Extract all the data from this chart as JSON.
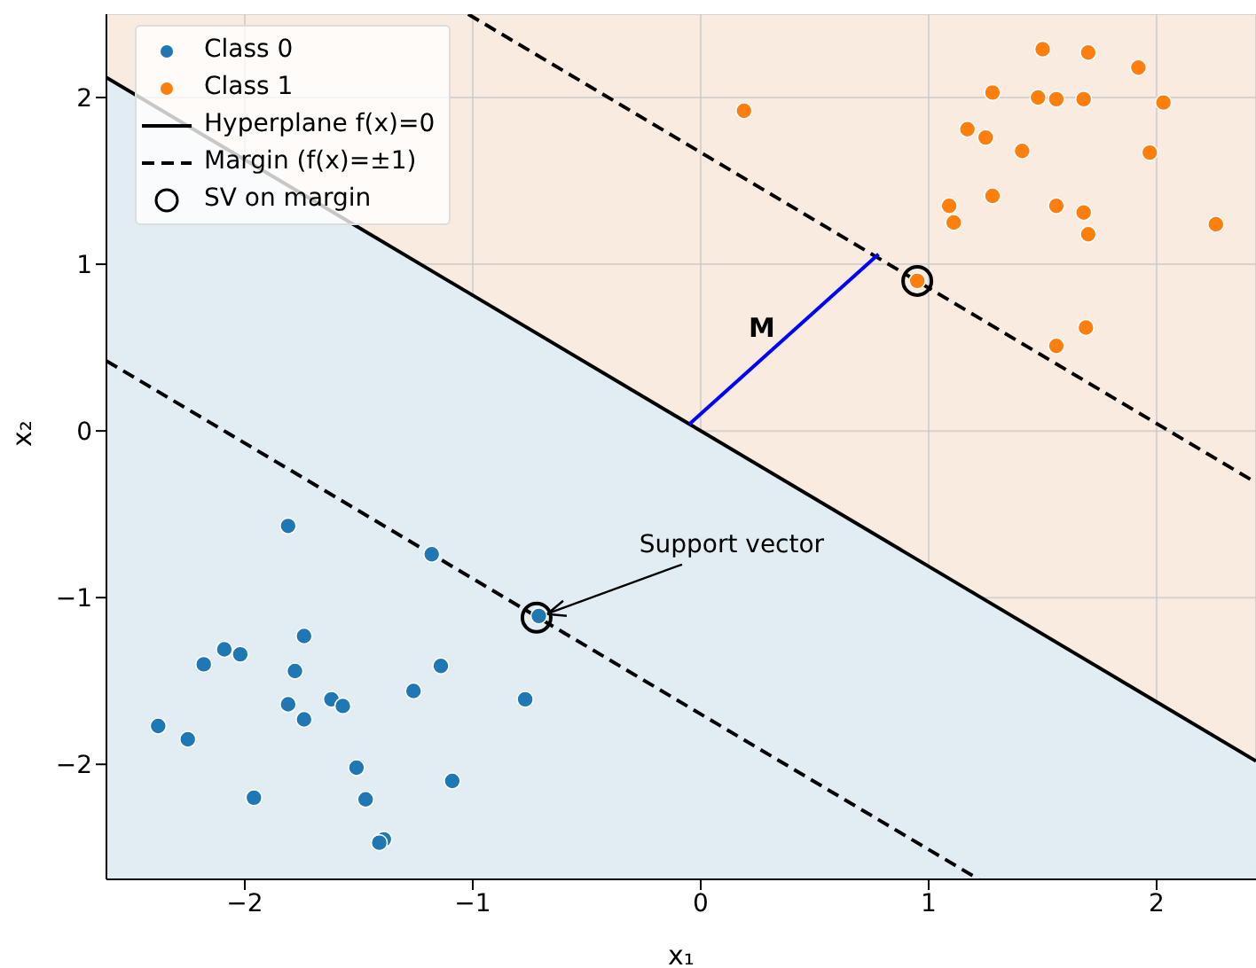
{
  "chart_data": {
    "type": "scatter",
    "xlabel": "x₁",
    "ylabel": "x₂",
    "xlim": [
      -2.607,
      2.436
    ],
    "ylim": [
      -2.69,
      2.5
    ],
    "xticks": [
      -2,
      -1,
      0,
      1,
      2
    ],
    "yticks": [
      -2,
      -1,
      0,
      1,
      2
    ],
    "grid": true,
    "legend": "top left",
    "annotations": [
      "M",
      {
        "text": "Support vector",
        "x": -0.72,
        "y": -1.12
      }
    ],
    "series": [
      {
        "name": "Class 0",
        "color": "#1f77b4",
        "marker": "circle",
        "x": [
          -1.81,
          -1.18,
          -0.71,
          -1.74,
          -2.09,
          -2.02,
          -2.18,
          -1.78,
          -1.14,
          -1.26,
          -0.77,
          -1.62,
          -1.57,
          -1.81,
          -1.74,
          -2.38,
          -2.25,
          -1.51,
          -1.09,
          -1.96,
          -1.47,
          -1.39,
          -1.41
        ],
        "values": [
          -0.57,
          -0.74,
          -1.11,
          -1.23,
          -1.31,
          -1.34,
          -1.4,
          -1.44,
          -1.41,
          -1.56,
          -1.61,
          -1.61,
          -1.65,
          -1.64,
          -1.73,
          -1.77,
          -1.85,
          -2.02,
          -2.1,
          -2.2,
          -2.21,
          -2.45,
          -2.47
        ]
      },
      {
        "name": "Class 1",
        "color": "#ff7f0e",
        "marker": "circle",
        "x": [
          1.5,
          1.7,
          1.92,
          1.28,
          1.48,
          1.56,
          1.68,
          2.03,
          0.19,
          1.17,
          1.25,
          1.41,
          1.97,
          1.09,
          1.28,
          1.56,
          1.68,
          1.11,
          1.7,
          2.26,
          0.95,
          1.69,
          1.56
        ],
        "values": [
          2.29,
          2.27,
          2.18,
          2.03,
          2.0,
          1.99,
          1.99,
          1.97,
          1.92,
          1.81,
          1.76,
          1.68,
          1.67,
          1.35,
          1.41,
          1.35,
          1.31,
          1.25,
          1.18,
          1.24,
          0.9,
          0.62,
          0.51
        ]
      },
      {
        "type": "line",
        "name": "Hyperplane f(x)=0",
        "color": "#000000",
        "line_style": "solid",
        "x": [
          -2.607,
          2.436
        ],
        "values": [
          2.12,
          -1.98
        ],
        "lower": [
          -2.69,
          -2.69
        ],
        "upper": [
          2.12,
          -1.98
        ]
      },
      {
        "type": "line",
        "name": "Margin (f(x)=±1)",
        "color": "#000000",
        "line_style": "dashed",
        "x": [
          -1.02,
          2.436,
          0,
          -2.607,
          1.22
        ],
        "values": [
          2.5,
          -0.31,
          null,
          0.42,
          -2.69
        ]
      },
      {
        "type": "line",
        "color": "#0000ff",
        "line_style": "solid",
        "x": [
          -0.05,
          0.78
        ],
        "values": [
          0.04,
          1.06
        ]
      },
      {
        "name": "SV on margin",
        "color": "#000000",
        "marker": "open_circle",
        "x": [
          0.95,
          -0.72
        ],
        "values": [
          0.9,
          -1.12
        ]
      }
    ]
  }
}
